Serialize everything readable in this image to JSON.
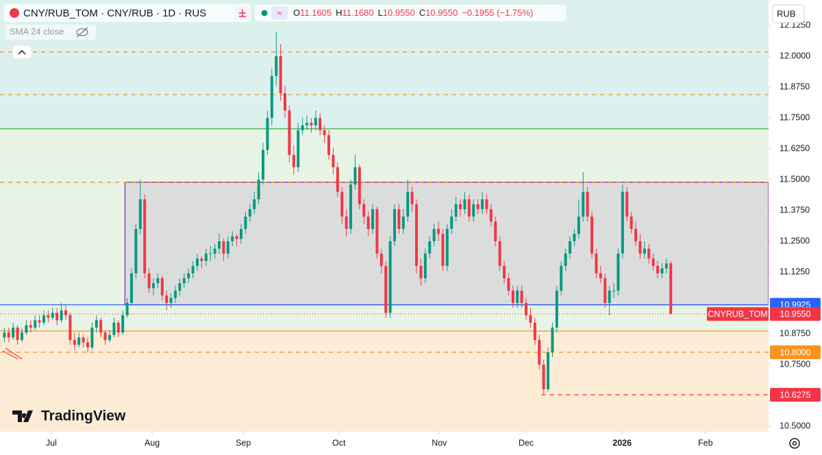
{
  "chart_data": {
    "type": "candlestick",
    "title": "CNY/RUB_TOM · CNY/RUB · 1D · RUS",
    "legend_ohlc": [
      {
        "key": "O",
        "value": "11.1605"
      },
      {
        "key": "H",
        "value": "11.1680"
      },
      {
        "key": "L",
        "value": "10.9550"
      },
      {
        "key": "C",
        "value": "10.9550"
      }
    ],
    "change": "−0.1955 (−1.75%)",
    "indicator": "SMA 24 close",
    "currency": "RUB",
    "brand": "TradingView",
    "symbol_label": "CNYRUB_TOM",
    "up_color": "#089981",
    "down_color": "#f23645",
    "xlim": [
      -1,
      174.3
    ],
    "xticks": [
      {
        "value": 10.7,
        "label": "Jul"
      },
      {
        "value": 33.7,
        "label": "Aug"
      },
      {
        "value": 54.5,
        "label": "Sep"
      },
      {
        "value": 76.3,
        "label": "Oct"
      },
      {
        "value": 99.2,
        "label": "Nov"
      },
      {
        "value": 119,
        "label": "Dec"
      },
      {
        "value": 140.9,
        "label": "2026"
      },
      {
        "value": 159.9,
        "label": "Feb"
      }
    ],
    "ylim": [
      10.478,
      12.228
    ],
    "yticks": [
      {
        "value": 10.5,
        "label": "10.5000"
      },
      {
        "value": 10.75,
        "label": "10.7500"
      },
      {
        "value": 10.875,
        "label": "10.8750"
      },
      {
        "value": 11.125,
        "label": "11.1250"
      },
      {
        "value": 11.25,
        "label": "11.2500"
      },
      {
        "value": 11.375,
        "label": "11.3750"
      },
      {
        "value": 11.5,
        "label": "11.5000"
      },
      {
        "value": 11.625,
        "label": "11.6250"
      },
      {
        "value": 11.75,
        "label": "11.7500"
      },
      {
        "value": 11.875,
        "label": "11.8750"
      },
      {
        "value": 12,
        "label": "12.0000"
      },
      {
        "value": 12.125,
        "label": "12.1250"
      }
    ],
    "zones": {
      "above": {
        "value": 11.706,
        "color": "#dcf1ee"
      },
      "below": {
        "value": 10.886,
        "color": "#fdecd5"
      },
      "between_color": "#e7f4e5"
    },
    "levels": [
      {
        "value": 12.017,
        "color": "#f7931e",
        "dash": "6 6"
      },
      {
        "value": 11.844,
        "color": "#f7931e",
        "dash": "6 6"
      },
      {
        "value": 11.706,
        "color": "#4caf50",
        "dash": "none"
      },
      {
        "value": 11.489,
        "color": "#f7931e",
        "dash": "6 6"
      },
      {
        "value": 10.9925,
        "color": "#2962ff",
        "dash": "none"
      },
      {
        "value": 10.955,
        "color": "#f23645",
        "dash": "1 3"
      },
      {
        "value": 10.886,
        "color": "#f7931e",
        "dash": "none"
      },
      {
        "value": 10.8,
        "color": "#f7931e",
        "dash": "6 6"
      },
      {
        "value": 10.6275,
        "color": "#f23645",
        "dash": "6 6",
        "x_start": 122.5
      }
    ],
    "box": {
      "x_start": 27.5,
      "top": 11.489,
      "bottom": 10.9925,
      "color": "#8e44ad",
      "fill": "rgba(142,68,173,0.13)"
    },
    "price_labels": [
      {
        "value": 10.9925,
        "label": "10.9925",
        "color": "#2962ff"
      },
      {
        "value": 10.955,
        "label": "10.9550",
        "color": "#f23645"
      },
      {
        "value": 10.8,
        "label": "10.8000",
        "color": "#f7931e"
      },
      {
        "value": 10.6275,
        "label": "10.6275",
        "color": "#f23645"
      }
    ],
    "ohlc": [
      [
        10.86,
        10.9,
        10.84,
        10.88
      ],
      [
        10.88,
        10.9,
        10.84,
        10.86
      ],
      [
        10.86,
        10.92,
        10.85,
        10.9
      ],
      [
        10.9,
        10.91,
        10.83,
        10.85
      ],
      [
        10.85,
        10.9,
        10.84,
        10.88
      ],
      [
        10.88,
        10.93,
        10.87,
        10.91
      ],
      [
        10.91,
        10.93,
        10.88,
        10.9
      ],
      [
        10.9,
        10.95,
        10.89,
        10.93
      ],
      [
        10.93,
        10.95,
        10.9,
        10.92
      ],
      [
        10.92,
        10.97,
        10.91,
        10.95
      ],
      [
        10.95,
        10.97,
        10.92,
        10.94
      ],
      [
        10.94,
        10.98,
        10.93,
        10.96
      ],
      [
        10.96,
        10.98,
        10.91,
        10.93
      ],
      [
        10.93,
        11.0,
        10.92,
        10.97
      ],
      [
        10.97,
        10.99,
        10.93,
        10.95
      ],
      [
        10.95,
        10.96,
        10.83,
        10.85
      ],
      [
        10.85,
        10.88,
        10.81,
        10.83
      ],
      [
        10.83,
        10.88,
        10.82,
        10.86
      ],
      [
        10.86,
        10.87,
        10.82,
        10.84
      ],
      [
        10.84,
        10.86,
        10.8,
        10.82
      ],
      [
        10.82,
        10.92,
        10.81,
        10.9
      ],
      [
        10.9,
        10.95,
        10.88,
        10.93
      ],
      [
        10.93,
        10.94,
        10.86,
        10.88
      ],
      [
        10.88,
        10.89,
        10.83,
        10.85
      ],
      [
        10.85,
        10.89,
        10.84,
        10.87
      ],
      [
        10.87,
        10.94,
        10.86,
        10.92
      ],
      [
        10.92,
        10.93,
        10.86,
        10.88
      ],
      [
        10.88,
        10.97,
        10.87,
        10.95
      ],
      [
        10.95,
        11.02,
        10.94,
        11.0
      ],
      [
        11.0,
        11.14,
        10.99,
        11.12
      ],
      [
        11.12,
        11.32,
        11.1,
        11.3
      ],
      [
        11.3,
        11.5,
        11.28,
        11.42
      ],
      [
        11.42,
        11.44,
        11.1,
        11.12
      ],
      [
        11.12,
        11.14,
        11.04,
        11.06
      ],
      [
        11.06,
        11.1,
        11.03,
        11.08
      ],
      [
        11.08,
        11.12,
        11.06,
        11.1
      ],
      [
        11.1,
        11.11,
        11.01,
        11.03
      ],
      [
        11.03,
        11.05,
        10.97,
        11.0
      ],
      [
        11.0,
        11.04,
        10.98,
        11.02
      ],
      [
        11.02,
        11.07,
        11.0,
        11.05
      ],
      [
        11.05,
        11.1,
        11.03,
        11.08
      ],
      [
        11.08,
        11.12,
        11.06,
        11.1
      ],
      [
        11.1,
        11.14,
        11.08,
        11.12
      ],
      [
        11.12,
        11.17,
        11.1,
        11.15
      ],
      [
        11.15,
        11.2,
        11.13,
        11.18
      ],
      [
        11.18,
        11.19,
        11.14,
        11.17
      ],
      [
        11.17,
        11.22,
        11.15,
        11.2
      ],
      [
        11.2,
        11.23,
        11.17,
        11.2
      ],
      [
        11.2,
        11.24,
        11.18,
        11.22
      ],
      [
        11.22,
        11.28,
        11.2,
        11.25
      ],
      [
        11.25,
        11.26,
        11.17,
        11.2
      ],
      [
        11.2,
        11.27,
        11.18,
        11.25
      ],
      [
        11.25,
        11.29,
        11.23,
        11.27
      ],
      [
        11.27,
        11.28,
        11.23,
        11.26
      ],
      [
        11.26,
        11.32,
        11.24,
        11.3
      ],
      [
        11.3,
        11.37,
        11.28,
        11.35
      ],
      [
        11.35,
        11.4,
        11.33,
        11.38
      ],
      [
        11.38,
        11.45,
        11.36,
        11.42
      ],
      [
        11.42,
        11.53,
        11.4,
        11.5
      ],
      [
        11.5,
        11.65,
        11.48,
        11.62
      ],
      [
        11.62,
        11.78,
        11.6,
        11.75
      ],
      [
        11.75,
        11.95,
        11.72,
        11.92
      ],
      [
        11.92,
        12.1,
        11.88,
        12.0
      ],
      [
        12.0,
        12.05,
        11.82,
        11.85
      ],
      [
        11.85,
        11.88,
        11.75,
        11.78
      ],
      [
        11.78,
        11.8,
        11.57,
        11.6
      ],
      [
        11.6,
        11.64,
        11.52,
        11.55
      ],
      [
        11.55,
        11.73,
        11.53,
        11.7
      ],
      [
        11.7,
        11.75,
        11.68,
        11.72
      ],
      [
        11.72,
        11.76,
        11.7,
        11.73
      ],
      [
        11.73,
        11.75,
        11.69,
        11.72
      ],
      [
        11.72,
        11.78,
        11.7,
        11.75
      ],
      [
        11.75,
        11.77,
        11.68,
        11.7
      ],
      [
        11.7,
        11.72,
        11.65,
        11.68
      ],
      [
        11.68,
        11.7,
        11.58,
        11.6
      ],
      [
        11.6,
        11.63,
        11.52,
        11.55
      ],
      [
        11.55,
        11.57,
        11.43,
        11.45
      ],
      [
        11.45,
        11.47,
        11.32,
        11.35
      ],
      [
        11.35,
        11.38,
        11.27,
        11.3
      ],
      [
        11.3,
        11.5,
        11.28,
        11.48
      ],
      [
        11.48,
        11.6,
        11.46,
        11.55
      ],
      [
        11.55,
        11.56,
        11.38,
        11.4
      ],
      [
        11.4,
        11.42,
        11.32,
        11.35
      ],
      [
        11.35,
        11.37,
        11.27,
        11.3
      ],
      [
        11.3,
        11.4,
        11.28,
        11.38
      ],
      [
        11.38,
        11.39,
        11.18,
        11.2
      ],
      [
        11.2,
        11.22,
        11.12,
        11.15
      ],
      [
        11.15,
        11.17,
        10.94,
        10.96
      ],
      [
        10.96,
        11.27,
        10.94,
        11.25
      ],
      [
        11.25,
        11.4,
        11.23,
        11.38
      ],
      [
        11.38,
        11.4,
        11.28,
        11.3
      ],
      [
        11.3,
        11.38,
        11.28,
        11.35
      ],
      [
        11.35,
        11.5,
        11.33,
        11.45
      ],
      [
        11.45,
        11.47,
        11.37,
        11.4
      ],
      [
        11.4,
        11.42,
        11.12,
        11.15
      ],
      [
        11.15,
        11.18,
        11.07,
        11.1
      ],
      [
        11.1,
        11.22,
        11.08,
        11.2
      ],
      [
        11.2,
        11.27,
        11.18,
        11.25
      ],
      [
        11.25,
        11.32,
        11.23,
        11.3
      ],
      [
        11.3,
        11.33,
        11.25,
        11.28
      ],
      [
        11.28,
        11.3,
        11.13,
        11.15
      ],
      [
        11.15,
        11.32,
        11.13,
        11.3
      ],
      [
        11.3,
        11.38,
        11.28,
        11.35
      ],
      [
        11.35,
        11.43,
        11.33,
        11.4
      ],
      [
        11.4,
        11.42,
        11.35,
        11.38
      ],
      [
        11.38,
        11.45,
        11.36,
        11.42
      ],
      [
        11.42,
        11.44,
        11.33,
        11.35
      ],
      [
        11.35,
        11.42,
        11.33,
        11.4
      ],
      [
        11.4,
        11.42,
        11.36,
        11.38
      ],
      [
        11.38,
        11.45,
        11.36,
        11.42
      ],
      [
        11.42,
        11.44,
        11.36,
        11.38
      ],
      [
        11.38,
        11.4,
        11.31,
        11.33
      ],
      [
        11.33,
        11.35,
        11.23,
        11.25
      ],
      [
        11.25,
        11.27,
        11.13,
        11.15
      ],
      [
        11.15,
        11.17,
        11.08,
        11.1
      ],
      [
        11.1,
        11.12,
        11.03,
        11.05
      ],
      [
        11.05,
        11.07,
        10.98,
        11.0
      ],
      [
        11.0,
        11.07,
        10.98,
        11.05
      ],
      [
        11.05,
        11.07,
        10.98,
        11.0
      ],
      [
        11.0,
        11.02,
        10.93,
        10.95
      ],
      [
        10.95,
        10.98,
        10.9,
        10.92
      ],
      [
        10.92,
        10.94,
        10.83,
        10.85
      ],
      [
        10.85,
        10.87,
        10.73,
        10.75
      ],
      [
        10.75,
        10.77,
        10.63,
        10.65
      ],
      [
        10.65,
        10.82,
        10.64,
        10.8
      ],
      [
        10.8,
        10.92,
        10.78,
        10.9
      ],
      [
        10.9,
        11.07,
        10.88,
        11.05
      ],
      [
        11.05,
        11.17,
        11.03,
        11.15
      ],
      [
        11.15,
        11.22,
        11.13,
        11.2
      ],
      [
        11.2,
        11.27,
        11.18,
        11.25
      ],
      [
        11.25,
        11.3,
        11.23,
        11.28
      ],
      [
        11.28,
        11.42,
        11.26,
        11.35
      ],
      [
        11.35,
        11.53,
        11.33,
        11.45
      ],
      [
        11.45,
        11.47,
        11.33,
        11.35
      ],
      [
        11.35,
        11.37,
        11.18,
        11.2
      ],
      [
        11.2,
        11.22,
        11.1,
        11.12
      ],
      [
        11.12,
        11.15,
        11.08,
        11.1
      ],
      [
        11.1,
        11.12,
        10.98,
        11.0
      ],
      [
        11.0,
        11.07,
        10.95,
        11.05
      ],
      [
        11.05,
        11.08,
        11.02,
        11.05
      ],
      [
        11.05,
        11.22,
        11.03,
        11.2
      ],
      [
        11.2,
        11.48,
        11.18,
        11.45
      ],
      [
        11.45,
        11.47,
        11.33,
        11.35
      ],
      [
        11.35,
        11.37,
        11.28,
        11.3
      ],
      [
        11.3,
        11.33,
        11.23,
        11.25
      ],
      [
        11.25,
        11.28,
        11.18,
        11.2
      ],
      [
        11.2,
        11.25,
        11.18,
        11.22
      ],
      [
        11.22,
        11.24,
        11.16,
        11.18
      ],
      [
        11.18,
        11.2,
        11.13,
        11.15
      ],
      [
        11.15,
        11.17,
        11.1,
        11.12
      ],
      [
        11.12,
        11.16,
        11.1,
        11.14
      ],
      [
        11.14,
        11.18,
        11.12,
        11.16
      ],
      [
        11.1605,
        11.168,
        10.955,
        10.955
      ]
    ]
  }
}
